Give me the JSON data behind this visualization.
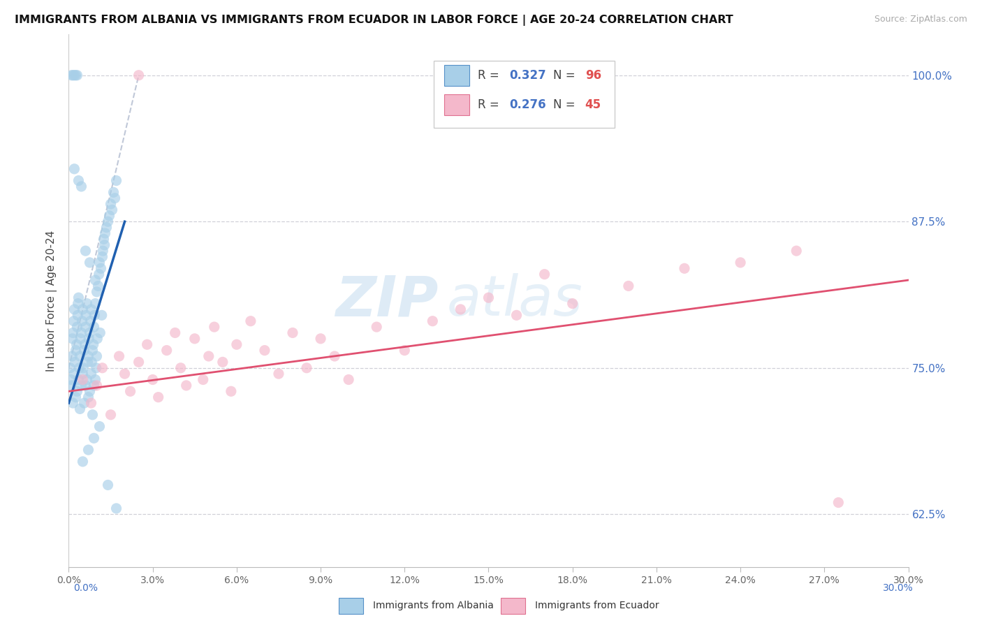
{
  "title": "IMMIGRANTS FROM ALBANIA VS IMMIGRANTS FROM ECUADOR IN LABOR FORCE | AGE 20-24 CORRELATION CHART",
  "source": "Source: ZipAtlas.com",
  "legend_albania_r": "0.327",
  "legend_albania_n": "96",
  "legend_ecuador_r": "0.276",
  "legend_ecuador_n": "45",
  "color_albania": "#a8cfe8",
  "color_ecuador": "#f4b8cb",
  "color_trendline_albania": "#2060b0",
  "color_trendline_ecuador": "#e05070",
  "color_refline": "#c0c8d8",
  "watermark_zip": "ZIP",
  "watermark_atlas": "atlas",
  "ylabel_label": "In Labor Force | Age 20-24",
  "xmin": 0.0,
  "xmax": 30.0,
  "ymin": 58.0,
  "ymax": 103.5,
  "ytick_vals": [
    62.5,
    75.0,
    87.5,
    100.0
  ],
  "xtick_vals": [
    0.0,
    3.0,
    6.0,
    9.0,
    12.0,
    15.0,
    18.0,
    21.0,
    24.0,
    27.0,
    30.0
  ],
  "ytick_color": "#4472c4",
  "title_fontsize": 11.5,
  "albania_x": [
    0.05,
    0.08,
    0.1,
    0.12,
    0.13,
    0.15,
    0.15,
    0.18,
    0.2,
    0.2,
    0.22,
    0.25,
    0.25,
    0.28,
    0.3,
    0.3,
    0.32,
    0.33,
    0.35,
    0.35,
    0.38,
    0.4,
    0.4,
    0.42,
    0.45,
    0.45,
    0.48,
    0.5,
    0.5,
    0.52,
    0.55,
    0.55,
    0.58,
    0.6,
    0.6,
    0.62,
    0.65,
    0.65,
    0.68,
    0.7,
    0.7,
    0.72,
    0.75,
    0.75,
    0.78,
    0.8,
    0.8,
    0.82,
    0.85,
    0.85,
    0.88,
    0.9,
    0.9,
    0.92,
    0.95,
    0.95,
    0.98,
    1.0,
    1.0,
    1.02,
    1.05,
    1.08,
    1.1,
    1.12,
    1.15,
    1.18,
    1.2,
    1.22,
    1.25,
    1.28,
    1.3,
    1.35,
    1.4,
    1.45,
    1.5,
    1.55,
    1.6,
    1.65,
    1.7,
    0.1,
    0.15,
    0.2,
    0.25,
    0.3,
    0.5,
    0.7,
    0.9,
    1.1,
    1.4,
    1.7,
    0.2,
    0.35,
    0.45,
    0.6,
    0.75,
    0.95
  ],
  "albania_y": [
    75.0,
    74.0,
    73.5,
    76.0,
    77.5,
    78.0,
    72.0,
    79.0,
    74.5,
    80.0,
    75.5,
    76.5,
    72.5,
    77.0,
    78.5,
    73.0,
    79.5,
    80.5,
    74.0,
    81.0,
    75.0,
    76.0,
    71.5,
    77.5,
    78.0,
    73.5,
    79.0,
    74.5,
    80.0,
    75.0,
    76.5,
    72.0,
    77.0,
    78.5,
    73.5,
    79.5,
    74.0,
    80.5,
    75.5,
    76.0,
    72.5,
    77.5,
    78.0,
    73.0,
    79.0,
    74.5,
    80.0,
    75.5,
    76.5,
    71.0,
    77.0,
    78.5,
    73.5,
    79.5,
    74.0,
    80.5,
    75.0,
    76.0,
    81.5,
    77.5,
    82.0,
    83.0,
    84.0,
    78.0,
    83.5,
    79.5,
    84.5,
    85.0,
    86.0,
    85.5,
    86.5,
    87.0,
    87.5,
    88.0,
    89.0,
    88.5,
    90.0,
    89.5,
    91.0,
    100.0,
    100.0,
    100.0,
    100.0,
    100.0,
    67.0,
    68.0,
    69.0,
    70.0,
    65.0,
    63.0,
    92.0,
    91.0,
    90.5,
    85.0,
    84.0,
    82.5
  ],
  "ecuador_x": [
    0.5,
    0.8,
    1.0,
    1.2,
    1.5,
    1.8,
    2.0,
    2.2,
    2.5,
    2.8,
    3.0,
    3.2,
    3.5,
    3.8,
    4.0,
    4.2,
    4.5,
    4.8,
    5.0,
    5.2,
    5.5,
    5.8,
    6.0,
    6.5,
    7.0,
    7.5,
    8.0,
    8.5,
    9.0,
    9.5,
    10.0,
    11.0,
    12.0,
    13.0,
    14.0,
    15.0,
    16.0,
    17.0,
    18.0,
    20.0,
    22.0,
    24.0,
    26.0,
    27.5,
    2.5
  ],
  "ecuador_y": [
    74.0,
    72.0,
    73.5,
    75.0,
    71.0,
    76.0,
    74.5,
    73.0,
    75.5,
    77.0,
    74.0,
    72.5,
    76.5,
    78.0,
    75.0,
    73.5,
    77.5,
    74.0,
    76.0,
    78.5,
    75.5,
    73.0,
    77.0,
    79.0,
    76.5,
    74.5,
    78.0,
    75.0,
    77.5,
    76.0,
    74.0,
    78.5,
    76.5,
    79.0,
    80.0,
    81.0,
    79.5,
    83.0,
    80.5,
    82.0,
    83.5,
    84.0,
    85.0,
    63.5,
    100.0
  ],
  "trendline_albania_x0": 0.0,
  "trendline_albania_x1": 2.0,
  "trendline_albania_y0": 72.0,
  "trendline_albania_y1": 87.5,
  "trendline_ecuador_x0": 0.0,
  "trendline_ecuador_x1": 30.0,
  "trendline_ecuador_y0": 73.0,
  "trendline_ecuador_y1": 82.5,
  "refline_x0": 0.0,
  "refline_x1": 2.5,
  "refline_y0": 75.0,
  "refline_y1": 100.0
}
